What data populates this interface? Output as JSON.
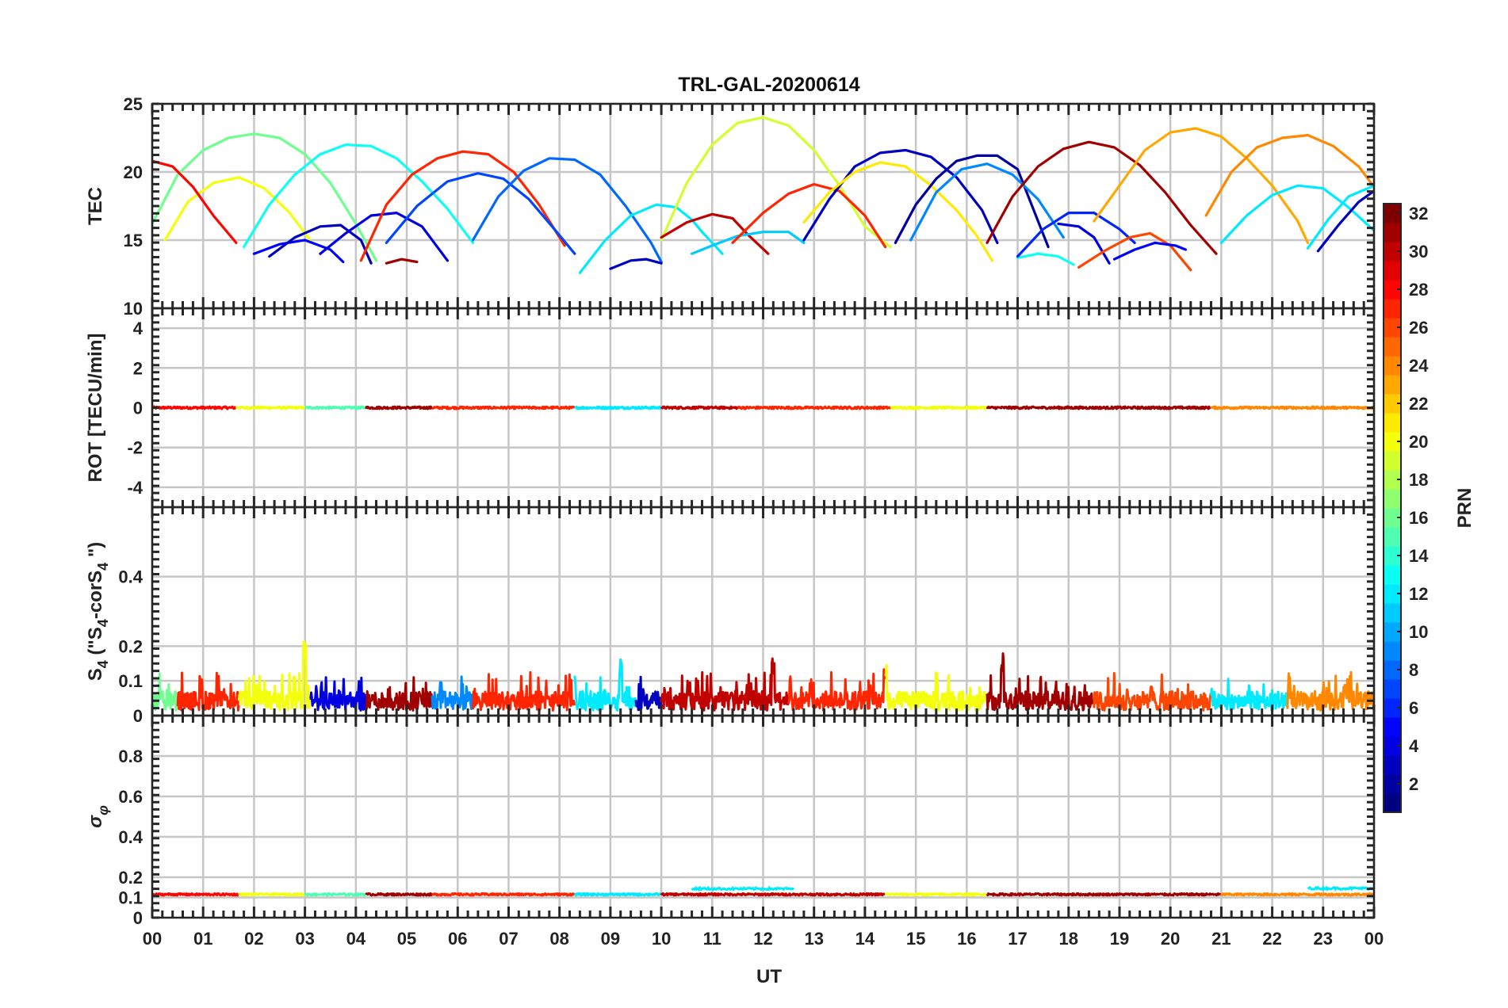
{
  "chart_data": {
    "type": "line",
    "title": "TRL-GAL-20200614",
    "xlabel": "UT",
    "x_ticks": [
      "00",
      "01",
      "02",
      "03",
      "04",
      "05",
      "06",
      "07",
      "08",
      "09",
      "10",
      "11",
      "12",
      "13",
      "14",
      "15",
      "16",
      "17",
      "18",
      "19",
      "20",
      "21",
      "22",
      "23",
      "00"
    ],
    "xlim": [
      0,
      24
    ],
    "grid": true,
    "colorbar": {
      "label": "PRN",
      "range": [
        1,
        32
      ],
      "ticks": [
        "2",
        "4",
        "6",
        "8",
        "10",
        "12",
        "14",
        "16",
        "18",
        "20",
        "22",
        "24",
        "26",
        "28",
        "30",
        "32"
      ],
      "colormap": "jet"
    },
    "panels": [
      {
        "id": "tec",
        "ylabel": "TEC",
        "ylim": [
          10,
          25
        ],
        "yticks": [
          "10",
          "15",
          "20",
          "25"
        ],
        "series": [
          {
            "prn": 16,
            "x": [
              0.0,
              0.5,
              1.0,
              1.5,
              2.0,
              2.5,
              3.0,
              3.5,
              4.0,
              4.4
            ],
            "y": [
              16.2,
              19.8,
              21.6,
              22.5,
              22.8,
              22.5,
              21.3,
              19.2,
              16.2,
              13.5
            ]
          },
          {
            "prn": 20,
            "x": [
              0.25,
              0.7,
              1.2,
              1.7,
              2.2,
              2.7,
              3.1
            ],
            "y": [
              15.0,
              17.8,
              19.2,
              19.6,
              18.8,
              17.0,
              15.0
            ]
          },
          {
            "prn": 28,
            "x": [
              0.0,
              0.4,
              0.8,
              1.2,
              1.65
            ],
            "y": [
              20.8,
              20.4,
              18.9,
              16.8,
              14.8
            ]
          },
          {
            "prn": 13,
            "x": [
              1.8,
              2.3,
              2.8,
              3.3,
              3.8,
              4.3,
              4.8,
              5.3,
              5.8,
              6.3
            ],
            "y": [
              14.5,
              17.6,
              19.8,
              21.3,
              22.0,
              21.9,
              21.0,
              19.3,
              17.3,
              14.8
            ]
          },
          {
            "prn": 5,
            "x": [
              2.0,
              2.5,
              3.0,
              3.5,
              3.75
            ],
            "y": [
              14.0,
              14.7,
              15.0,
              14.3,
              13.4
            ]
          },
          {
            "prn": 3,
            "x": [
              2.3,
              2.8,
              3.3,
              3.7,
              4.1,
              4.3
            ],
            "y": [
              13.8,
              15.2,
              16.0,
              16.1,
              15.0,
              13.3
            ]
          },
          {
            "prn": 4,
            "x": [
              3.3,
              3.8,
              4.3,
              4.8,
              5.3,
              5.8
            ],
            "y": [
              14.0,
              15.5,
              16.8,
              17.0,
              16.0,
              13.5
            ]
          },
          {
            "prn": 27,
            "x": [
              4.1,
              4.6,
              5.1,
              5.6,
              6.1,
              6.6,
              7.1,
              7.6,
              8.1
            ],
            "y": [
              13.5,
              17.6,
              19.8,
              21.0,
              21.5,
              21.3,
              20.0,
              17.6,
              14.6
            ]
          },
          {
            "prn": 31,
            "x": [
              4.6,
              4.9,
              5.2
            ],
            "y": [
              13.3,
              13.6,
              13.4
            ]
          },
          {
            "prn": 7,
            "x": [
              4.6,
              5.2,
              5.8,
              6.4,
              6.9,
              7.4,
              7.9,
              8.3
            ],
            "y": [
              14.8,
              17.5,
              19.3,
              19.9,
              19.5,
              18.0,
              15.8,
              14.0
            ]
          },
          {
            "prn": 8,
            "x": [
              6.3,
              6.8,
              7.3,
              7.8,
              8.3,
              8.8,
              9.3,
              9.8,
              10.0
            ],
            "y": [
              15.0,
              18.2,
              20.1,
              21.0,
              20.9,
              19.8,
              17.5,
              14.8,
              13.4
            ]
          },
          {
            "prn": 12,
            "x": [
              8.4,
              8.9,
              9.4,
              9.9,
              10.3,
              10.6,
              10.8,
              11.2
            ],
            "y": [
              12.6,
              15.0,
              16.8,
              17.6,
              17.4,
              16.5,
              15.6,
              14.0
            ]
          },
          {
            "prn": 3,
            "x": [
              9.0,
              9.4,
              9.7,
              10.0
            ],
            "y": [
              12.9,
              13.5,
              13.6,
              13.3
            ]
          },
          {
            "prn": 19,
            "x": [
              10.0,
              10.5,
              11.0,
              11.5,
              12.0,
              12.5,
              13.0,
              13.5,
              14.0,
              14.5
            ],
            "y": [
              15.0,
              19.2,
              22.0,
              23.6,
              24.0,
              23.4,
              21.6,
              19.0,
              16.0,
              14.5
            ]
          },
          {
            "prn": 30,
            "x": [
              10.0,
              10.5,
              11.0,
              11.4,
              11.7,
              12.1
            ],
            "y": [
              15.2,
              16.3,
              16.9,
              16.6,
              15.4,
              14.0
            ]
          },
          {
            "prn": 11,
            "x": [
              10.6,
              11.0,
              11.5,
              12.0,
              12.5,
              12.8
            ],
            "y": [
              14.0,
              14.6,
              15.3,
              15.6,
              15.6,
              14.8
            ]
          },
          {
            "prn": 27,
            "x": [
              11.4,
              12.0,
              12.5,
              13.0,
              13.5,
              14.0,
              14.4
            ],
            "y": [
              14.8,
              17.0,
              18.4,
              19.1,
              18.6,
              16.8,
              14.5
            ]
          },
          {
            "prn": 3,
            "x": [
              12.8,
              13.3,
              13.8,
              14.3,
              14.8,
              15.3,
              15.8,
              16.3,
              16.6
            ],
            "y": [
              15.0,
              18.0,
              20.4,
              21.4,
              21.6,
              21.1,
              19.6,
              17.2,
              14.8
            ]
          },
          {
            "prn": 21,
            "x": [
              12.8,
              13.3,
              13.8,
              14.3,
              14.8,
              15.3,
              15.8,
              16.2,
              16.5
            ],
            "y": [
              16.3,
              18.5,
              20.0,
              20.7,
              20.4,
              19.0,
              17.2,
              15.3,
              13.5
            ]
          },
          {
            "prn": 2,
            "x": [
              14.6,
              15.0,
              15.4,
              15.8,
              16.2,
              16.6,
              17.0,
              17.6
            ],
            "y": [
              14.8,
              17.6,
              19.5,
              20.8,
              21.2,
              21.2,
              20.2,
              14.5
            ]
          },
          {
            "prn": 9,
            "x": [
              14.9,
              15.4,
              15.9,
              16.4,
              16.9,
              17.4,
              17.9
            ],
            "y": [
              15.0,
              18.5,
              20.2,
              20.6,
              19.8,
              18.0,
              15.2
            ]
          },
          {
            "prn": 31,
            "x": [
              16.4,
              16.9,
              17.4,
              17.9,
              18.4,
              18.9,
              19.4,
              19.9,
              20.4,
              20.9
            ],
            "y": [
              14.8,
              18.2,
              20.4,
              21.7,
              22.2,
              21.8,
              20.5,
              18.5,
              16.1,
              14.0
            ]
          },
          {
            "prn": 13,
            "x": [
              17.0,
              17.4,
              17.8,
              18.1
            ],
            "y": [
              13.7,
              14.0,
              13.8,
              13.2
            ]
          },
          {
            "prn": 6,
            "x": [
              17.0,
              17.5,
              18.0,
              18.5,
              19.0,
              19.3
            ],
            "y": [
              13.8,
              15.8,
              17.0,
              17.0,
              15.8,
              14.8
            ]
          },
          {
            "prn": 4,
            "x": [
              17.8,
              18.2,
              18.5,
              18.8
            ],
            "y": [
              16.2,
              16.0,
              15.2,
              13.3
            ]
          },
          {
            "prn": 26,
            "x": [
              18.2,
              18.7,
              19.2,
              19.6,
              20.0,
              20.4
            ],
            "y": [
              13.0,
              14.2,
              15.2,
              15.5,
              14.6,
              12.8
            ]
          },
          {
            "prn": 5,
            "x": [
              18.9,
              19.3,
              19.7,
              20.1,
              20.3
            ],
            "y": [
              13.6,
              14.3,
              14.8,
              14.6,
              14.3
            ]
          },
          {
            "prn": 23,
            "x": [
              18.5,
              19.0,
              19.5,
              20.0,
              20.5,
              21.0,
              21.5,
              22.0,
              22.5,
              22.7
            ],
            "y": [
              16.4,
              19.0,
              21.6,
              22.9,
              23.2,
              22.6,
              21.0,
              19.0,
              16.4,
              14.8
            ]
          },
          {
            "prn": 24,
            "x": [
              20.7,
              21.2,
              21.7,
              22.2,
              22.7,
              23.2,
              23.7,
              24.0
            ],
            "y": [
              16.8,
              20.0,
              21.8,
              22.5,
              22.7,
              21.9,
              20.4,
              18.9
            ]
          },
          {
            "prn": 12,
            "x": [
              21.0,
              21.5,
              22.0,
              22.5,
              23.0,
              23.5,
              24.0
            ],
            "y": [
              14.8,
              16.8,
              18.3,
              19.0,
              18.8,
              17.4,
              15.7
            ]
          },
          {
            "prn": 12,
            "x": [
              22.7,
              23.1,
              23.5,
              24.0
            ],
            "y": [
              14.4,
              16.5,
              18.2,
              19.0
            ]
          },
          {
            "prn": 3,
            "x": [
              22.9,
              23.3,
              23.7,
              24.0
            ],
            "y": [
              14.2,
              16.1,
              17.8,
              18.6
            ]
          }
        ]
      },
      {
        "id": "rot",
        "ylabel": "ROT [TECU/min]",
        "ylim": [
          -5,
          5
        ],
        "yticks": [
          "-4",
          "-2",
          "0",
          "2",
          "4"
        ],
        "noise": {
          "base": 0.0,
          "amplitude": 0.12,
          "spikes": []
        },
        "segments": [
          {
            "prn": 28,
            "x0": 0.0,
            "x1": 1.65
          },
          {
            "prn": 20,
            "x0": 1.65,
            "x1": 3.0
          },
          {
            "prn": 15,
            "x0": 3.0,
            "x1": 4.2
          },
          {
            "prn": 31,
            "x0": 4.2,
            "x1": 5.5
          },
          {
            "prn": 27,
            "x0": 5.5,
            "x1": 8.3
          },
          {
            "prn": 12,
            "x0": 8.3,
            "x1": 10.0
          },
          {
            "prn": 30,
            "x0": 10.0,
            "x1": 11.5
          },
          {
            "prn": 27,
            "x0": 11.5,
            "x1": 14.5
          },
          {
            "prn": 20,
            "x0": 14.5,
            "x1": 16.4
          },
          {
            "prn": 31,
            "x0": 16.4,
            "x1": 20.8
          },
          {
            "prn": 24,
            "x0": 20.8,
            "x1": 24.0
          }
        ]
      },
      {
        "id": "s4",
        "ylabel": "S4 (\"S4-corS4\")",
        "ylim": [
          0,
          0.6
        ],
        "yticks": [
          "0",
          "0.1",
          "0.2",
          "0.4"
        ],
        "noise": {
          "base": 0.035,
          "amplitude": 0.055,
          "spikes": [
            [
              3.0,
              0.215
            ],
            [
              12.2,
              0.19
            ],
            [
              16.7,
              0.18
            ],
            [
              9.2,
              0.165
            ],
            [
              14.4,
              0.16
            ]
          ]
        },
        "segments": [
          {
            "prn": 16,
            "x0": 0.0,
            "x1": 0.5
          },
          {
            "prn": 27,
            "x0": 0.5,
            "x1": 1.7
          },
          {
            "prn": 20,
            "x0": 1.7,
            "x1": 3.1
          },
          {
            "prn": 4,
            "x0": 3.1,
            "x1": 4.2
          },
          {
            "prn": 31,
            "x0": 4.2,
            "x1": 5.5
          },
          {
            "prn": 9,
            "x0": 5.5,
            "x1": 6.3
          },
          {
            "prn": 27,
            "x0": 6.3,
            "x1": 8.3
          },
          {
            "prn": 12,
            "x0": 8.3,
            "x1": 9.5
          },
          {
            "prn": 3,
            "x0": 9.5,
            "x1": 10.0
          },
          {
            "prn": 30,
            "x0": 10.0,
            "x1": 12.5
          },
          {
            "prn": 27,
            "x0": 12.5,
            "x1": 14.4
          },
          {
            "prn": 20,
            "x0": 14.4,
            "x1": 16.4
          },
          {
            "prn": 31,
            "x0": 16.4,
            "x1": 18.5
          },
          {
            "prn": 26,
            "x0": 18.5,
            "x1": 20.8
          },
          {
            "prn": 12,
            "x0": 20.8,
            "x1": 22.3
          },
          {
            "prn": 24,
            "x0": 22.3,
            "x1": 24.0
          }
        ]
      },
      {
        "id": "sigma_phi",
        "ylabel": "σφ",
        "ylim": [
          0,
          1
        ],
        "yticks": [
          "0",
          "0.1",
          "0.2",
          "0.4",
          "0.6",
          "0.8"
        ],
        "noise": {
          "base": 0.115,
          "amplitude": 0.01,
          "spikes": []
        },
        "segments": [
          {
            "prn": 28,
            "x0": 0.0,
            "x1": 1.7
          },
          {
            "prn": 20,
            "x0": 1.7,
            "x1": 3.0
          },
          {
            "prn": 15,
            "x0": 3.0,
            "x1": 4.2
          },
          {
            "prn": 31,
            "x0": 4.2,
            "x1": 5.5
          },
          {
            "prn": 27,
            "x0": 5.5,
            "x1": 8.3
          },
          {
            "prn": 12,
            "x0": 8.3,
            "x1": 10.0
          },
          {
            "prn": 30,
            "x0": 10.0,
            "x1": 14.4
          },
          {
            "prn": 20,
            "x0": 14.4,
            "x1": 16.4
          },
          {
            "prn": 31,
            "x0": 16.4,
            "x1": 21.0
          },
          {
            "prn": 24,
            "x0": 21.0,
            "x1": 24.0
          }
        ],
        "extra_series": [
          {
            "prn": 12,
            "x0": 10.6,
            "x1": 12.6,
            "y": 0.143
          },
          {
            "prn": 12,
            "x0": 22.7,
            "x1": 24.0,
            "y": 0.145
          }
        ]
      }
    ]
  }
}
